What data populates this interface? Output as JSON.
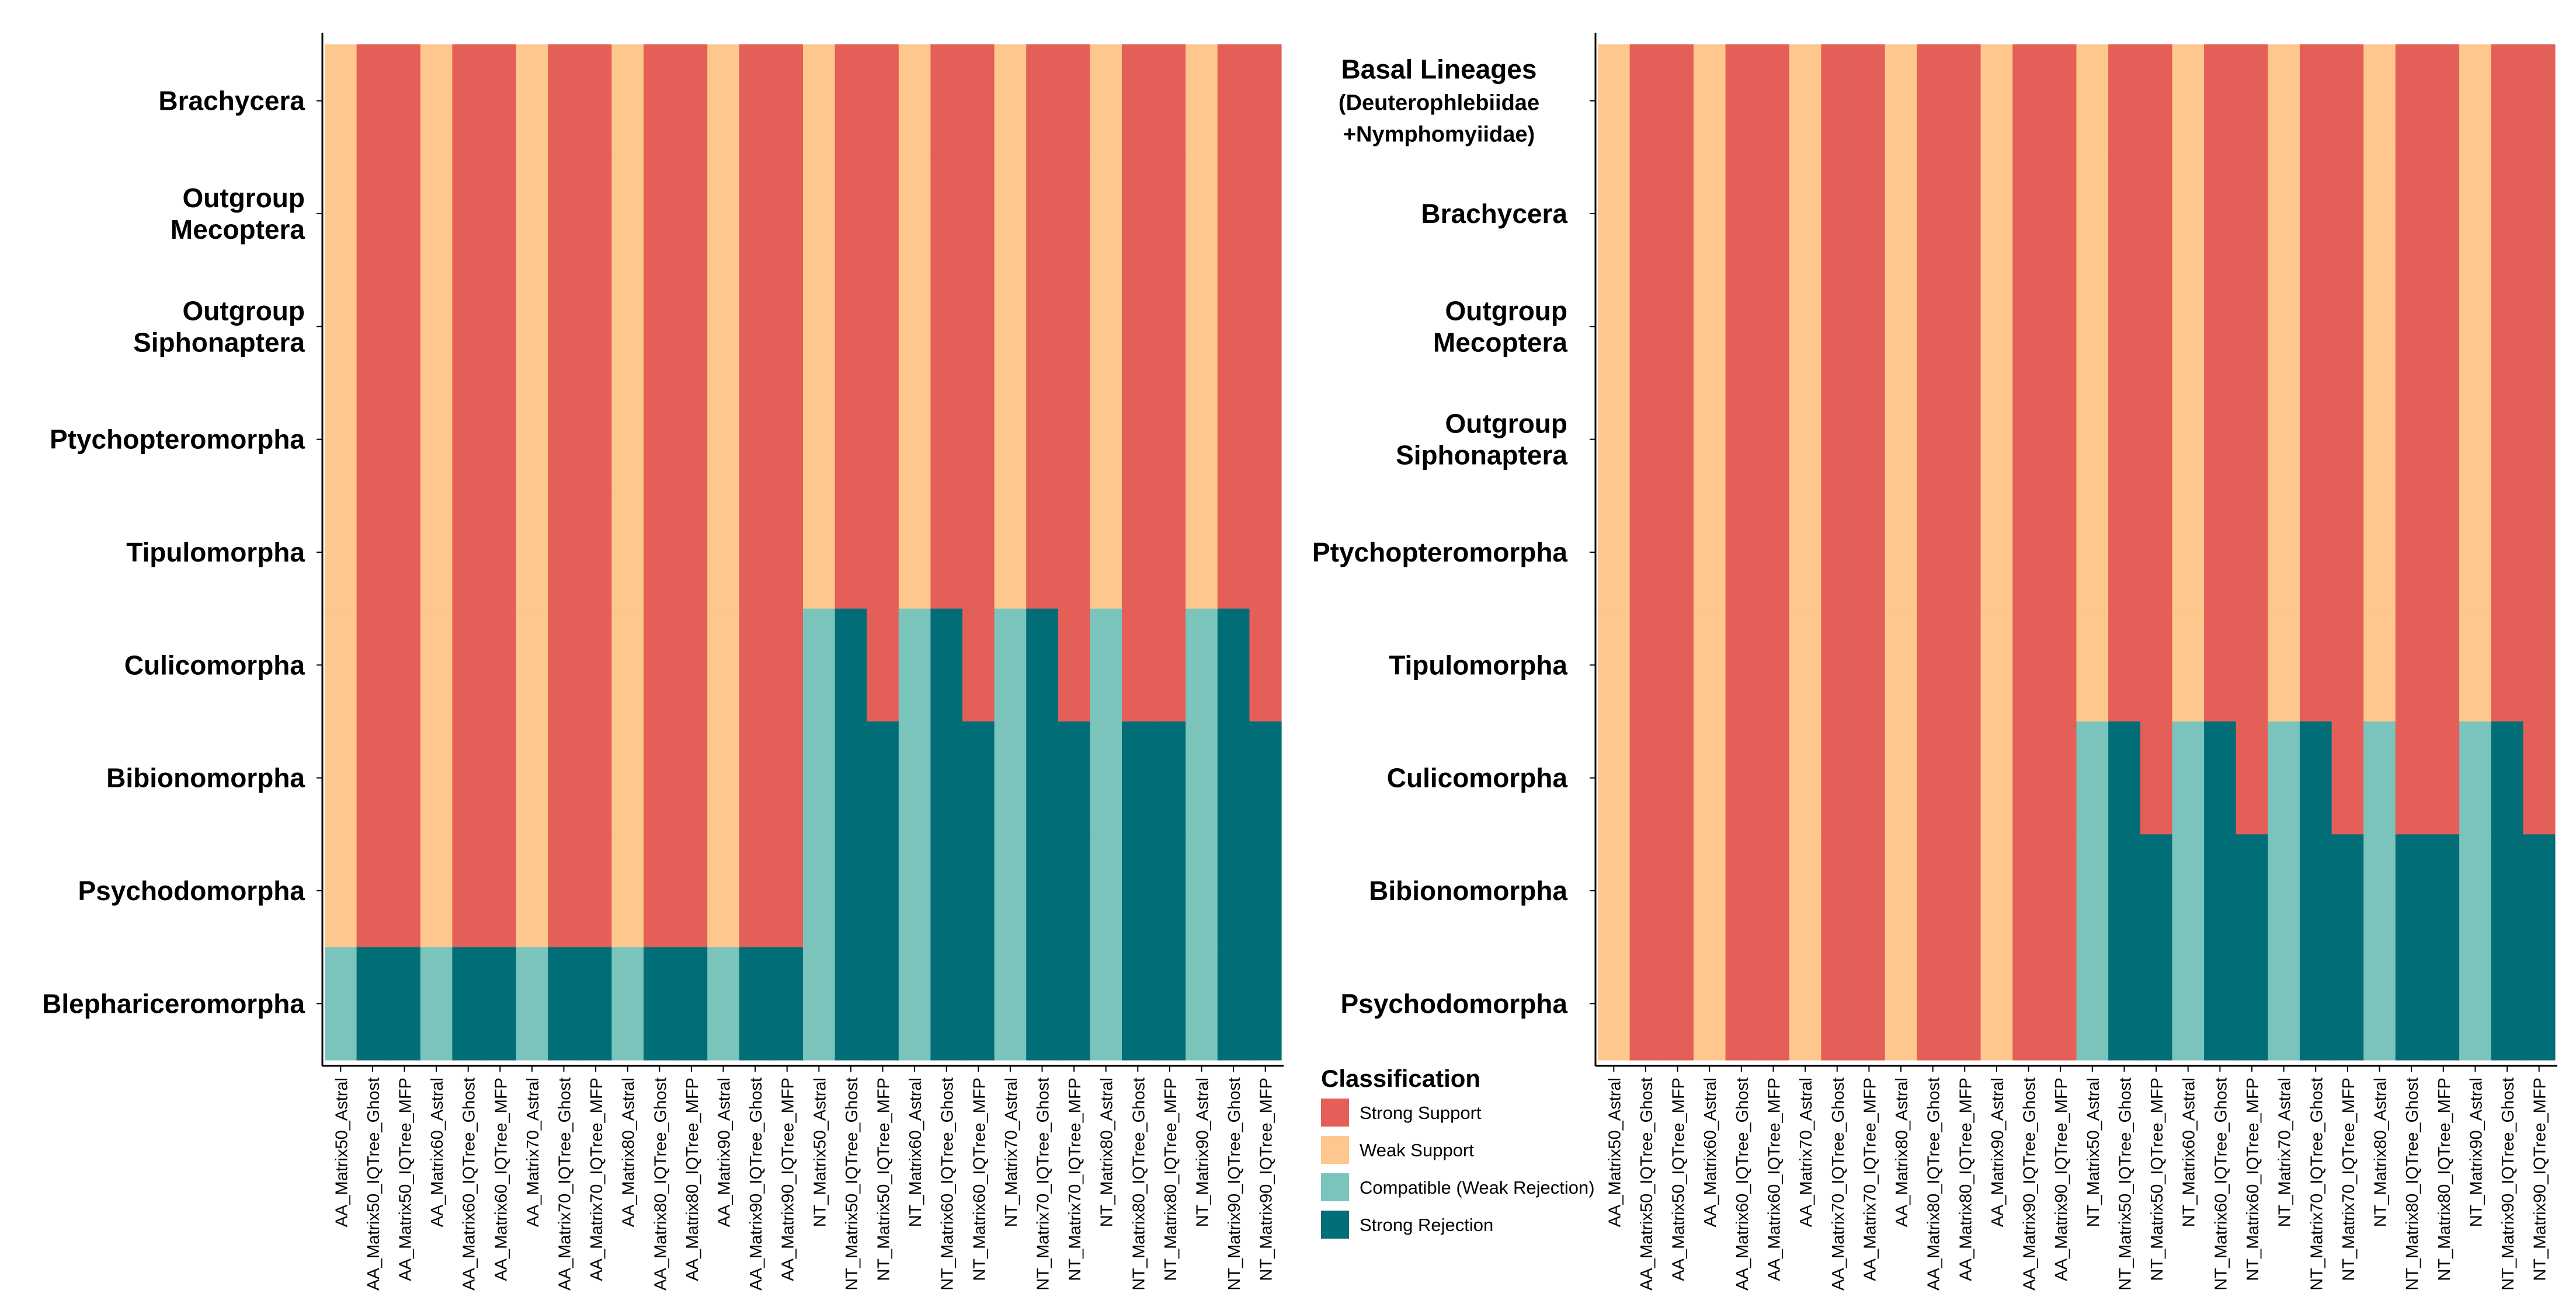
{
  "chart_data": [
    {
      "type": "heatmap",
      "columns": [
        "AA_Matrix50_Astral",
        "AA_Matrix50_IQTree_Ghost",
        "AA_Matrix50_IQTree_MFP",
        "AA_Matrix60_Astral",
        "AA_Matrix60_IQTree_Ghost",
        "AA_Matrix60_IQTree_MFP",
        "AA_Matrix70_Astral",
        "AA_Matrix70_IQTree_Ghost",
        "AA_Matrix70_IQTree_MFP",
        "AA_Matrix80_Astral",
        "AA_Matrix80_IQTree_Ghost",
        "AA_Matrix80_IQTree_MFP",
        "AA_Matrix90_Astral",
        "AA_Matrix90_IQTree_Ghost",
        "AA_Matrix90_IQTree_MFP",
        "NT_Matrix50_Astral",
        "NT_Matrix50_IQTree_Ghost",
        "NT_Matrix50_IQTree_MFP",
        "NT_Matrix60_Astral",
        "NT_Matrix60_IQTree_Ghost",
        "NT_Matrix60_IQTree_MFP",
        "NT_Matrix70_Astral",
        "NT_Matrix70_IQTree_Ghost",
        "NT_Matrix70_IQTree_MFP",
        "NT_Matrix80_Astral",
        "NT_Matrix80_IQTree_Ghost",
        "NT_Matrix80_IQTree_MFP",
        "NT_Matrix90_Astral",
        "NT_Matrix90_IQTree_Ghost",
        "NT_Matrix90_IQTree_MFP"
      ],
      "rows": [
        {
          "label": [
            "Brachycera"
          ],
          "values": [
            "W",
            "S",
            "S",
            "W",
            "S",
            "S",
            "W",
            "S",
            "S",
            "W",
            "S",
            "S",
            "W",
            "S",
            "S",
            "W",
            "S",
            "S",
            "W",
            "S",
            "S",
            "W",
            "S",
            "S",
            "W",
            "S",
            "S",
            "W",
            "S",
            "S"
          ]
        },
        {
          "label": [
            "Outgroup",
            "Mecoptera"
          ],
          "values": [
            "W",
            "S",
            "S",
            "W",
            "S",
            "S",
            "W",
            "S",
            "S",
            "W",
            "S",
            "S",
            "W",
            "S",
            "S",
            "W",
            "S",
            "S",
            "W",
            "S",
            "S",
            "W",
            "S",
            "S",
            "W",
            "S",
            "S",
            "W",
            "S",
            "S"
          ]
        },
        {
          "label": [
            "Outgroup",
            "Siphonaptera"
          ],
          "values": [
            "W",
            "S",
            "S",
            "W",
            "S",
            "S",
            "W",
            "S",
            "S",
            "W",
            "S",
            "S",
            "W",
            "S",
            "S",
            "W",
            "S",
            "S",
            "W",
            "S",
            "S",
            "W",
            "S",
            "S",
            "W",
            "S",
            "S",
            "W",
            "S",
            "S"
          ]
        },
        {
          "label": [
            "Ptychopteromorpha"
          ],
          "values": [
            "W",
            "S",
            "S",
            "W",
            "S",
            "S",
            "W",
            "S",
            "S",
            "W",
            "S",
            "S",
            "W",
            "S",
            "S",
            "W",
            "S",
            "S",
            "W",
            "S",
            "S",
            "W",
            "S",
            "S",
            "W",
            "S",
            "S",
            "W",
            "S",
            "S"
          ]
        },
        {
          "label": [
            "Tipulomorpha"
          ],
          "values": [
            "W",
            "S",
            "S",
            "W",
            "S",
            "S",
            "W",
            "S",
            "S",
            "W",
            "S",
            "S",
            "W",
            "S",
            "S",
            "W",
            "S",
            "S",
            "W",
            "S",
            "S",
            "W",
            "S",
            "S",
            "W",
            "S",
            "S",
            "W",
            "S",
            "S"
          ]
        },
        {
          "label": [
            "Culicomorpha"
          ],
          "values": [
            "W",
            "S",
            "S",
            "W",
            "S",
            "S",
            "W",
            "S",
            "S",
            "W",
            "S",
            "S",
            "W",
            "S",
            "S",
            "C",
            "R",
            "S",
            "C",
            "R",
            "S",
            "C",
            "R",
            "S",
            "C",
            "S",
            "S",
            "C",
            "R",
            "S"
          ]
        },
        {
          "label": [
            "Bibionomorpha"
          ],
          "values": [
            "W",
            "S",
            "S",
            "W",
            "S",
            "S",
            "W",
            "S",
            "S",
            "W",
            "S",
            "S",
            "W",
            "S",
            "S",
            "C",
            "R",
            "R",
            "C",
            "R",
            "R",
            "C",
            "R",
            "R",
            "C",
            "R",
            "R",
            "C",
            "R",
            "R"
          ]
        },
        {
          "label": [
            "Psychodomorpha"
          ],
          "values": [
            "W",
            "S",
            "S",
            "W",
            "S",
            "S",
            "W",
            "S",
            "S",
            "W",
            "S",
            "S",
            "W",
            "S",
            "S",
            "C",
            "R",
            "R",
            "C",
            "R",
            "R",
            "C",
            "R",
            "R",
            "C",
            "R",
            "R",
            "C",
            "R",
            "R"
          ]
        },
        {
          "label": [
            "Blephariceromorpha"
          ],
          "values": [
            "C",
            "R",
            "R",
            "C",
            "R",
            "R",
            "C",
            "R",
            "R",
            "C",
            "R",
            "R",
            "C",
            "R",
            "R",
            "C",
            "R",
            "R",
            "C",
            "R",
            "R",
            "C",
            "R",
            "R",
            "C",
            "R",
            "R",
            "C",
            "R",
            "R"
          ]
        }
      ]
    },
    {
      "type": "heatmap",
      "columns": [
        "AA_Matrix50_Astral",
        "AA_Matrix50_IQTree_Ghost",
        "AA_Matrix50_IQTree_MFP",
        "AA_Matrix60_Astral",
        "AA_Matrix60_IQTree_Ghost",
        "AA_Matrix60_IQTree_MFP",
        "AA_Matrix70_Astral",
        "AA_Matrix70_IQTree_Ghost",
        "AA_Matrix70_IQTree_MFP",
        "AA_Matrix80_Astral",
        "AA_Matrix80_IQTree_Ghost",
        "AA_Matrix80_IQTree_MFP",
        "AA_Matrix90_Astral",
        "AA_Matrix90_IQTree_Ghost",
        "AA_Matrix90_IQTree_MFP",
        "NT_Matrix50_Astral",
        "NT_Matrix50_IQTree_Ghost",
        "NT_Matrix50_IQTree_MFP",
        "NT_Matrix60_Astral",
        "NT_Matrix60_IQTree_Ghost",
        "NT_Matrix60_IQTree_MFP",
        "NT_Matrix70_Astral",
        "NT_Matrix70_IQTree_Ghost",
        "NT_Matrix70_IQTree_MFP",
        "NT_Matrix80_Astral",
        "NT_Matrix80_IQTree_Ghost",
        "NT_Matrix80_IQTree_MFP",
        "NT_Matrix90_Astral",
        "NT_Matrix90_IQTree_Ghost",
        "NT_Matrix90_IQTree_MFP"
      ],
      "rows": [
        {
          "label": [
            "Basal Lineages",
            "(Deuterophlebiidae",
            "+Nymphomyiidae)"
          ],
          "values": [
            "W",
            "S",
            "S",
            "W",
            "S",
            "S",
            "W",
            "S",
            "S",
            "W",
            "S",
            "S",
            "W",
            "S",
            "S",
            "W",
            "S",
            "S",
            "W",
            "S",
            "S",
            "W",
            "S",
            "S",
            "W",
            "S",
            "S",
            "W",
            "S",
            "S"
          ]
        },
        {
          "label": [
            "Brachycera"
          ],
          "values": [
            "W",
            "S",
            "S",
            "W",
            "S",
            "S",
            "W",
            "S",
            "S",
            "W",
            "S",
            "S",
            "W",
            "S",
            "S",
            "W",
            "S",
            "S",
            "W",
            "S",
            "S",
            "W",
            "S",
            "S",
            "W",
            "S",
            "S",
            "W",
            "S",
            "S"
          ]
        },
        {
          "label": [
            "Outgroup",
            "Mecoptera"
          ],
          "values": [
            "W",
            "S",
            "S",
            "W",
            "S",
            "S",
            "W",
            "S",
            "S",
            "W",
            "S",
            "S",
            "W",
            "S",
            "S",
            "W",
            "S",
            "S",
            "W",
            "S",
            "S",
            "W",
            "S",
            "S",
            "W",
            "S",
            "S",
            "W",
            "S",
            "S"
          ]
        },
        {
          "label": [
            "Outgroup",
            "Siphonaptera"
          ],
          "values": [
            "W",
            "S",
            "S",
            "W",
            "S",
            "S",
            "W",
            "S",
            "S",
            "W",
            "S",
            "S",
            "W",
            "S",
            "S",
            "W",
            "S",
            "S",
            "W",
            "S",
            "S",
            "W",
            "S",
            "S",
            "W",
            "S",
            "S",
            "W",
            "S",
            "S"
          ]
        },
        {
          "label": [
            "Ptychopteromorpha"
          ],
          "values": [
            "W",
            "S",
            "S",
            "W",
            "S",
            "S",
            "W",
            "S",
            "S",
            "W",
            "S",
            "S",
            "W",
            "S",
            "S",
            "W",
            "S",
            "S",
            "W",
            "S",
            "S",
            "W",
            "S",
            "S",
            "W",
            "S",
            "S",
            "W",
            "S",
            "S"
          ]
        },
        {
          "label": [
            "Tipulomorpha"
          ],
          "values": [
            "W",
            "S",
            "S",
            "W",
            "S",
            "S",
            "W",
            "S",
            "S",
            "W",
            "S",
            "S",
            "W",
            "S",
            "S",
            "W",
            "S",
            "S",
            "W",
            "S",
            "S",
            "W",
            "S",
            "S",
            "W",
            "S",
            "S",
            "W",
            "S",
            "S"
          ]
        },
        {
          "label": [
            "Culicomorpha"
          ],
          "values": [
            "W",
            "S",
            "S",
            "W",
            "S",
            "S",
            "W",
            "S",
            "S",
            "W",
            "S",
            "S",
            "W",
            "S",
            "S",
            "C",
            "R",
            "S",
            "C",
            "R",
            "S",
            "C",
            "R",
            "S",
            "C",
            "S",
            "S",
            "C",
            "R",
            "S"
          ]
        },
        {
          "label": [
            "Bibionomorpha"
          ],
          "values": [
            "W",
            "S",
            "S",
            "W",
            "S",
            "S",
            "W",
            "S",
            "S",
            "W",
            "S",
            "S",
            "W",
            "S",
            "S",
            "C",
            "R",
            "R",
            "C",
            "R",
            "R",
            "C",
            "R",
            "R",
            "C",
            "R",
            "R",
            "C",
            "R",
            "R"
          ]
        },
        {
          "label": [
            "Psychodomorpha"
          ],
          "values": [
            "W",
            "S",
            "S",
            "W",
            "S",
            "S",
            "W",
            "S",
            "S",
            "W",
            "S",
            "S",
            "W",
            "S",
            "S",
            "C",
            "R",
            "R",
            "C",
            "R",
            "R",
            "C",
            "R",
            "R",
            "C",
            "R",
            "R",
            "C",
            "R",
            "R"
          ]
        }
      ]
    }
  ],
  "legend": {
    "title": "Classification",
    "placement": "bottom-center",
    "items": [
      {
        "key": "S",
        "label": "Strong Support",
        "color": "#E35F58"
      },
      {
        "key": "W",
        "label": "Weak Support",
        "color": "#FDC78D"
      },
      {
        "key": "C",
        "label": "Compatible (Weak Rejection)",
        "color": "#7AC4BC"
      },
      {
        "key": "R",
        "label": "Strong Rejection",
        "color": "#006D77"
      }
    ]
  }
}
